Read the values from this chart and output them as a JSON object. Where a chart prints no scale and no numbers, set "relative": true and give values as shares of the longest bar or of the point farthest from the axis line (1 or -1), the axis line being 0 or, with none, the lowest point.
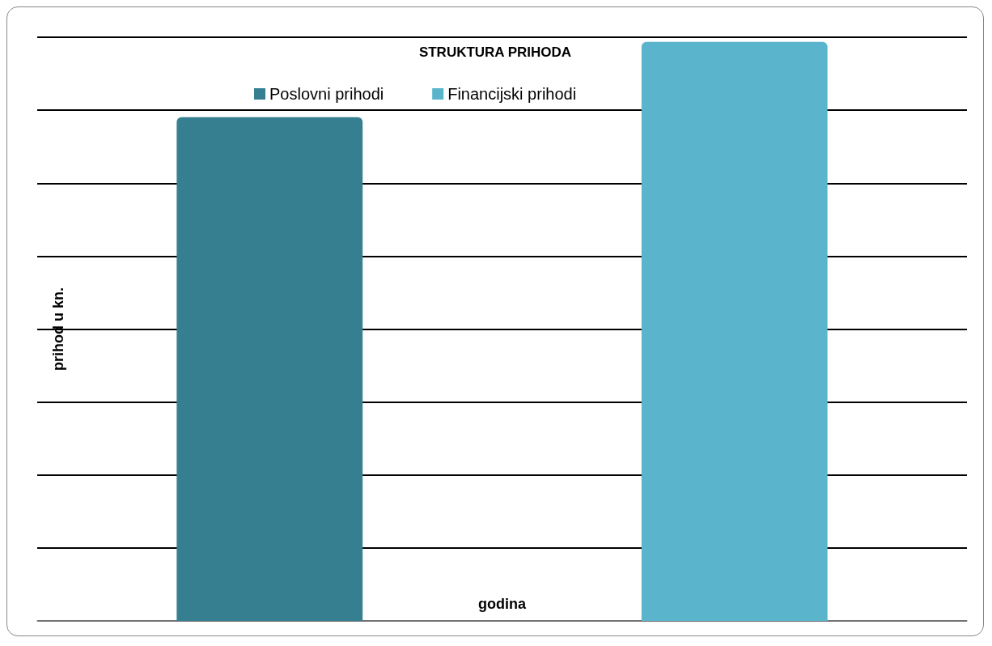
{
  "chart_data": {
    "type": "bar",
    "title": "STRUKTURA PRIHODA",
    "xlabel": "godina",
    "ylabel": "prihod u kn.",
    "relative": true,
    "categories": [
      null,
      null
    ],
    "stacked": true,
    "series": [
      {
        "name": "Poslovni prihodi",
        "color": "#367f91",
        "values": [
          0.87,
          null
        ]
      },
      {
        "name": "Financijski prihodi",
        "color": "#5ab4cb",
        "values": [
          null,
          1
        ]
      }
    ],
    "grid": "y",
    "legend": "top"
  }
}
